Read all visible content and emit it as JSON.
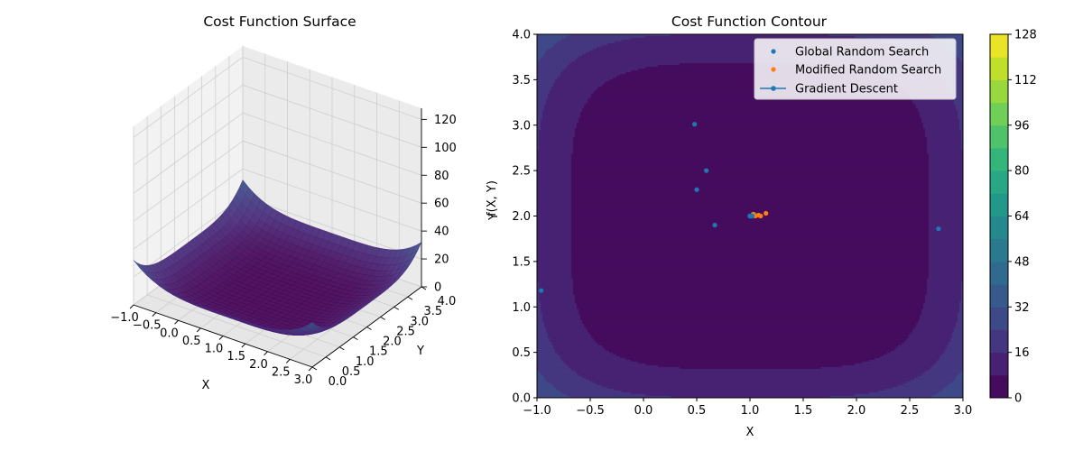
{
  "colors": {
    "global_random_search": "#1f77b4",
    "modified_random_search": "#ff7f0e",
    "gradient_descent": "#1f77b4",
    "colormap": "viridis"
  },
  "chart_data": [
    {
      "type": "surface3d",
      "title": "Cost Function Surface",
      "xlabel": "X",
      "ylabel": "Y",
      "zlabel": "f(X, Y)",
      "x_ticks": [
        "−1.0",
        "−0.5",
        "0.0",
        "0.5",
        "1.0",
        "1.5",
        "2.0",
        "2.5",
        "3.0"
      ],
      "y_ticks": [
        "0.0",
        "0.5",
        "1.0",
        "1.5",
        "2.0",
        "2.5",
        "3.0",
        "3.5",
        "4.0"
      ],
      "z_ticks": [
        "0",
        "20",
        "40",
        "60",
        "80",
        "100",
        "120"
      ],
      "xlim": [
        -1,
        3
      ],
      "ylim": [
        0,
        4
      ],
      "zlim": [
        0,
        128
      ],
      "colormap": "viridis",
      "grid": true
    },
    {
      "type": "contour",
      "title": "Cost Function Contour",
      "xlabel": "X",
      "ylabel": "Y",
      "xlim": [
        -1,
        3
      ],
      "ylim": [
        0,
        4
      ],
      "x_ticks": [
        "−1.0",
        "−0.5",
        "0.0",
        "0.5",
        "1.0",
        "1.5",
        "2.0",
        "2.5",
        "3.0"
      ],
      "y_ticks": [
        "0.0",
        "0.5",
        "1.0",
        "1.5",
        "2.0",
        "2.5",
        "3.0",
        "3.5",
        "4.0"
      ],
      "colorbar_ticks": [
        "0",
        "16",
        "32",
        "48",
        "64",
        "80",
        "96",
        "112",
        "128"
      ],
      "colorbar_range": [
        0,
        128
      ],
      "levels": [
        0,
        8,
        16,
        24,
        32,
        40,
        48,
        56,
        64,
        72,
        80,
        88,
        96,
        104,
        112,
        120,
        128
      ],
      "colormap": "viridis",
      "legend_position": "top-right",
      "series": [
        {
          "name": "Global Random Search",
          "marker": "scatter",
          "points": [
            [
              0.48,
              3.01
            ],
            [
              0.59,
              2.5
            ],
            [
              0.5,
              2.29
            ],
            [
              0.67,
              1.9
            ],
            [
              -0.96,
              1.18
            ],
            [
              2.77,
              1.86
            ],
            [
              1.0,
              2.0
            ],
            [
              1.04,
              2.02
            ]
          ]
        },
        {
          "name": "Modified Random Search",
          "marker": "scatter",
          "points": [
            [
              1.05,
              2.0
            ],
            [
              1.08,
              2.01
            ],
            [
              1.1,
              2.0
            ],
            [
              1.15,
              2.03
            ],
            [
              1.03,
              2.02
            ]
          ]
        },
        {
          "name": "Gradient Descent",
          "marker": "line",
          "points": [
            [
              1.0,
              2.0
            ],
            [
              1.01,
              2.0
            ],
            [
              1.02,
              2.0
            ]
          ]
        }
      ]
    }
  ]
}
